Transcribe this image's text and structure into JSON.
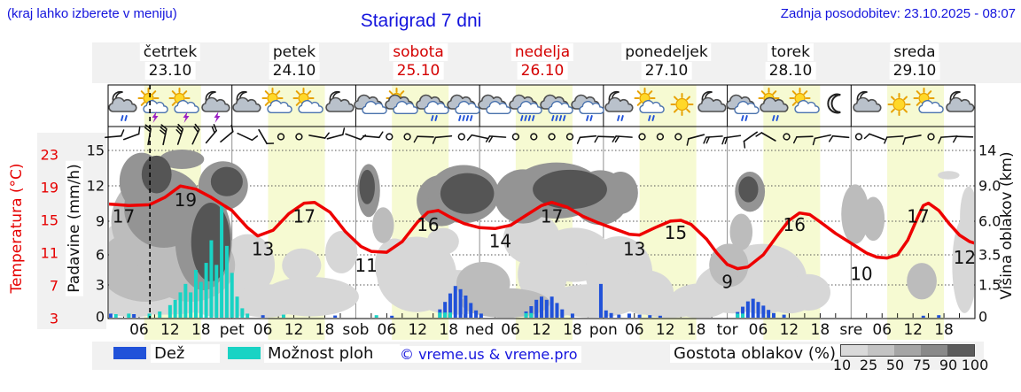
{
  "header": {
    "hint": "(kraj lahko izberete v meniju)",
    "title": "Starigrad 7 dni",
    "updated": "Zadnja posodobitev: 23.10.2025 - 08:07"
  },
  "days": [
    {
      "name": "četrtek",
      "date": "23.10",
      "weekend": false,
      "abbr": ""
    },
    {
      "name": "petek",
      "date": "24.10",
      "weekend": false,
      "abbr": "pet"
    },
    {
      "name": "sobota",
      "date": "25.10",
      "weekend": true,
      "abbr": "sob"
    },
    {
      "name": "nedelja",
      "date": "26.10",
      "weekend": true,
      "abbr": "ned"
    },
    {
      "name": "ponedeljek",
      "date": "27.10",
      "weekend": false,
      "abbr": "pon"
    },
    {
      "name": "torek",
      "date": "28.10",
      "weekend": false,
      "abbr": "tor"
    },
    {
      "name": "sreda",
      "date": "29.10",
      "weekend": false,
      "abbr": "sre"
    }
  ],
  "axes": {
    "temperature": {
      "label": "Temperatura (°C)",
      "ticks": [
        23,
        19,
        15,
        11,
        7,
        3
      ]
    },
    "precipitation": {
      "label": "Padavine (mm/h)",
      "ticks": [
        "15",
        "12",
        "9",
        "6",
        "3",
        "0"
      ]
    },
    "cloud_height": {
      "label": "Višina oblakov (km)",
      "ticks": [
        "14",
        "9.0",
        "6.0",
        "3.5",
        "1.5",
        "0"
      ]
    },
    "time": {
      "hour_labels": [
        "06",
        "12",
        "18"
      ]
    }
  },
  "legend": {
    "rain_label": "Dež",
    "shower_label": "Možnost ploh",
    "copyright": "© vreme.us & vreme.pro",
    "cloud_density_label": "Gostota oblakov (%)",
    "density_ticks": [
      "10",
      "25",
      "50",
      "75",
      "90",
      "100"
    ]
  },
  "colors": {
    "blue_text": "#1414dd",
    "red_text": "#e60000",
    "weekend_red": "#d40000",
    "temperature": "#ee0000",
    "rain": "#2152d9",
    "shower": "#19d3c4",
    "daylight": "#f6fad2",
    "density_shades": [
      "#d9d9d9",
      "#c3c3c3",
      "#a5a5a5",
      "#898989",
      "#5c5c5c"
    ],
    "cloud_shades": {
      "25": "#d7d7d7",
      "50": "#bcbcbc",
      "75": "#949494",
      "95": "#555555"
    }
  },
  "chart_data": {
    "type": "meteogram",
    "hours_span": 168,
    "current_time_hour": 8.1,
    "daylight_hours": [
      7,
      18
    ],
    "temperature_unit": "°C",
    "precip_unit": "mm/h",
    "cloud_height_unit": "km",
    "temperature_series": [
      [
        0,
        17
      ],
      [
        4,
        16.8
      ],
      [
        8,
        16.9
      ],
      [
        11,
        17.8
      ],
      [
        14,
        19.2
      ],
      [
        17,
        18.8
      ],
      [
        20,
        17.8
      ],
      [
        24,
        16.2
      ],
      [
        27,
        14.1
      ],
      [
        29,
        13.1
      ],
      [
        32,
        13.8
      ],
      [
        35,
        15.8
      ],
      [
        38,
        17.1
      ],
      [
        40,
        17.2
      ],
      [
        43,
        16
      ],
      [
        46,
        13.6
      ],
      [
        49,
        11.8
      ],
      [
        51,
        11.2
      ],
      [
        54,
        11.1
      ],
      [
        57,
        12.4
      ],
      [
        60,
        14.8
      ],
      [
        62,
        16
      ],
      [
        64,
        16.2
      ],
      [
        66,
        15.5
      ],
      [
        69,
        14.6
      ],
      [
        72,
        14.1
      ],
      [
        75,
        14
      ],
      [
        78,
        14.4
      ],
      [
        81,
        15.6
      ],
      [
        84,
        16.8
      ],
      [
        86,
        17.2
      ],
      [
        89,
        16.6
      ],
      [
        92,
        15.5
      ],
      [
        95,
        14.7
      ],
      [
        98,
        14
      ],
      [
        101,
        13.3
      ],
      [
        103,
        13.2
      ],
      [
        106,
        14.1
      ],
      [
        109,
        14.9
      ],
      [
        111,
        15
      ],
      [
        113,
        14.5
      ],
      [
        116,
        12.7
      ],
      [
        118,
        11
      ],
      [
        120,
        9.6
      ],
      [
        122,
        9.1
      ],
      [
        124,
        9.3
      ],
      [
        127,
        10.8
      ],
      [
        130,
        13.4
      ],
      [
        132,
        15
      ],
      [
        134,
        15.9
      ],
      [
        136,
        15.7
      ],
      [
        138,
        14.8
      ],
      [
        141,
        13.4
      ],
      [
        144,
        12.2
      ],
      [
        147,
        11
      ],
      [
        149,
        10.5
      ],
      [
        151,
        10.4
      ],
      [
        153,
        10.8
      ],
      [
        155,
        12.6
      ],
      [
        157,
        15.5
      ],
      [
        158,
        16.8
      ],
      [
        159,
        17.1
      ],
      [
        161,
        16.2
      ],
      [
        163,
        14.6
      ],
      [
        165,
        13.2
      ],
      [
        167,
        12.4
      ],
      [
        168,
        12.2
      ]
    ],
    "temperature_labels": [
      [
        3,
        17
      ],
      [
        15,
        19
      ],
      [
        30,
        13
      ],
      [
        38,
        17
      ],
      [
        50,
        11
      ],
      [
        62,
        16
      ],
      [
        76,
        14
      ],
      [
        86,
        17
      ],
      [
        102,
        13
      ],
      [
        110,
        15
      ],
      [
        120,
        9
      ],
      [
        133,
        16
      ],
      [
        146,
        10
      ],
      [
        157,
        17
      ],
      [
        166,
        12
      ]
    ],
    "rain_mm": [
      [
        0.5,
        0.3
      ],
      [
        5,
        0.25
      ],
      [
        30,
        0.15
      ],
      [
        44,
        0.12
      ],
      [
        55,
        0.1
      ],
      [
        64.3,
        0.7
      ],
      [
        65.3,
        1.4
      ],
      [
        66.3,
        2.2
      ],
      [
        67.3,
        2.9
      ],
      [
        68.3,
        2.6
      ],
      [
        69.3,
        2.0
      ],
      [
        70.3,
        1.3
      ],
      [
        71.3,
        0.6
      ],
      [
        72.3,
        0.3
      ],
      [
        81,
        0.5
      ],
      [
        82,
        1.0
      ],
      [
        83,
        1.6
      ],
      [
        84,
        1.9
      ],
      [
        85,
        1.6
      ],
      [
        86,
        1.9
      ],
      [
        87,
        1.3
      ],
      [
        88,
        0.7
      ],
      [
        90,
        0.3
      ],
      [
        95.5,
        3.1
      ],
      [
        96.5,
        0.6
      ],
      [
        97.5,
        0.35
      ],
      [
        99,
        0.2
      ],
      [
        101,
        0.3
      ],
      [
        103,
        0.2
      ],
      [
        105,
        0.15
      ],
      [
        107,
        0.1
      ],
      [
        122,
        0.45
      ],
      [
        123,
        0.95
      ],
      [
        124,
        1.45
      ],
      [
        125,
        1.7
      ],
      [
        126,
        1.4
      ],
      [
        127,
        1.05
      ],
      [
        128,
        0.65
      ],
      [
        129,
        0.35
      ],
      [
        131,
        0.2
      ],
      [
        158,
        0.1
      ],
      [
        161,
        0.15
      ]
    ],
    "shower_mm": [
      [
        1.5,
        0.25
      ],
      [
        4,
        0.3
      ],
      [
        8,
        0.3
      ],
      [
        10,
        0.5
      ],
      [
        12,
        1.1
      ],
      [
        13,
        1.6
      ],
      [
        14,
        2.3
      ],
      [
        15,
        3.1
      ],
      [
        16,
        2.3
      ],
      [
        17,
        4.5
      ],
      [
        18,
        3.3
      ],
      [
        19,
        5.2
      ],
      [
        20,
        7.3
      ],
      [
        21,
        5.0
      ],
      [
        22,
        10.5
      ],
      [
        23,
        6.8
      ],
      [
        24,
        4.2
      ],
      [
        25,
        1.9
      ],
      [
        26,
        0.8
      ],
      [
        27,
        0.3
      ],
      [
        34,
        0.2
      ],
      [
        52,
        0.15
      ],
      [
        64.3,
        0.4
      ],
      [
        65.3,
        0.4
      ],
      [
        66.3,
        0.4
      ],
      [
        81,
        0.35
      ],
      [
        82,
        0.35
      ],
      [
        122,
        0.3
      ],
      [
        123,
        0.3
      ]
    ],
    "clouds": [
      [
        1,
        2.5,
        2.4,
        3,
        25
      ],
      [
        4.8,
        0.55,
        6,
        0.6,
        25
      ],
      [
        10.8,
        1.15,
        13.7,
        1.2,
        25
      ],
      [
        22.8,
        0.75,
        7.7,
        0.85,
        25
      ],
      [
        7.4,
        2.8,
        9.4,
        2.3,
        50
      ],
      [
        16,
        2.8,
        8.6,
        2.3,
        50
      ],
      [
        10,
        6,
        9.4,
        4,
        50
      ],
      [
        10.8,
        7.1,
        7.7,
        3.5,
        75
      ],
      [
        18.5,
        4.6,
        5.5,
        3.6,
        75
      ],
      [
        6.5,
        9.6,
        4.3,
        3.2,
        75
      ],
      [
        9.4,
        10.6,
        2.9,
        2.4,
        95
      ],
      [
        19.9,
        4.45,
        3.8,
        2.9,
        95
      ],
      [
        22.3,
        9,
        4.8,
        2.6,
        75
      ],
      [
        23,
        9.6,
        3.1,
        1.7,
        95
      ],
      [
        14.3,
        12.75,
        4.3,
        1.5,
        75
      ],
      [
        27.1,
        2.8,
        5.2,
        2,
        25
      ],
      [
        30.6,
        0.75,
        6.9,
        0.85,
        25
      ],
      [
        39.2,
        0.95,
        9.4,
        1.05,
        25
      ],
      [
        37.5,
        2.8,
        3.8,
        1.15,
        25
      ],
      [
        45.2,
        3.7,
        3.1,
        1.5,
        25
      ],
      [
        50.5,
        8.6,
        2.2,
        2.7,
        75
      ],
      [
        50.2,
        8.9,
        1.5,
        1.8,
        95
      ],
      [
        53.3,
        5.7,
        2.1,
        1.4,
        50
      ],
      [
        55.5,
        2.8,
        3.8,
        1.75,
        25
      ],
      [
        59.8,
        2.2,
        7.7,
        2.3,
        25
      ],
      [
        67.5,
        1.15,
        8.6,
        1.2,
        25
      ],
      [
        77,
        0.65,
        8.6,
        0.75,
        50
      ],
      [
        72.7,
        1.6,
        5.2,
        1.2,
        50
      ],
      [
        64.6,
        7.75,
        4.8,
        2.35,
        75
      ],
      [
        68.9,
        8.3,
        6.9,
        2.85,
        75
      ],
      [
        69.6,
        8.35,
        5.2,
        2,
        95
      ],
      [
        64.9,
        4.5,
        3.1,
        1,
        25
      ],
      [
        83.8,
        0.65,
        9.4,
        0.72,
        25
      ],
      [
        84.2,
        2.2,
        4.8,
        1.75,
        25
      ],
      [
        80.4,
        8.1,
        5.5,
        2.6,
        75
      ],
      [
        86.9,
        8.6,
        8.9,
        2.85,
        75
      ],
      [
        89.5,
        8.7,
        7.2,
        2,
        95
      ],
      [
        95.4,
        8,
        5.5,
        2.6,
        75
      ],
      [
        99.3,
        8.4,
        3.4,
        2.1,
        75
      ],
      [
        82.1,
        4.7,
        5.5,
        1.9,
        25
      ],
      [
        90.4,
        3.5,
        7.2,
        1.9,
        25
      ],
      [
        99,
        2.3,
        6.5,
        2.2,
        25
      ],
      [
        93.8,
        0.75,
        9.4,
        0.85,
        25
      ],
      [
        104.1,
        1.15,
        5.5,
        1.2,
        25
      ],
      [
        108.8,
        0.55,
        6.9,
        0.65,
        25
      ],
      [
        114.8,
        0.75,
        6,
        0.95,
        25
      ],
      [
        121,
        1.35,
        7.2,
        1.4,
        25
      ],
      [
        126.8,
        1.9,
        8.6,
        2.2,
        25
      ],
      [
        132,
        1.15,
        5.5,
        1.1,
        25
      ],
      [
        124.4,
        8.5,
        2.9,
        2,
        75
      ],
      [
        124.1,
        8.7,
        1.9,
        1.3,
        95
      ],
      [
        122.7,
        5.2,
        2.2,
        1.4,
        50
      ],
      [
        120.3,
        2.8,
        3.8,
        1.45,
        50
      ],
      [
        135.7,
        1.15,
        4.3,
        0.95,
        25
      ],
      [
        144.8,
        6.6,
        2.7,
        2.4,
        50
      ],
      [
        148.3,
        6.2,
        2.2,
        1.75,
        50
      ],
      [
        157.7,
        1.75,
        2.9,
        1.05,
        50
      ],
      [
        166,
        2.8,
        2.4,
        3.2,
        25
      ],
      [
        166.8,
        6.4,
        1.7,
        2.4,
        25
      ],
      [
        162.9,
        10.5,
        2.1,
        0.6,
        25
      ]
    ],
    "icons": [
      "mgr",
      "swb",
      "swb",
      "mgb",
      "mg",
      "sw",
      "sw",
      "mg",
      "gw",
      "sgw",
      "gwr",
      "gwR",
      "gw",
      "gwR",
      "gwR",
      "gwr",
      "mgr",
      "swr",
      "s",
      "mg",
      "gwr",
      "sgr",
      "sw",
      "m",
      "mg",
      "s",
      "sw",
      "mg"
    ],
    "wind": [
      [
        1,
        "b",
        -5,
        1
      ],
      [
        4.5,
        "b",
        -20,
        1
      ],
      [
        8,
        "b",
        -80,
        2
      ],
      [
        11,
        "b",
        -78,
        3
      ],
      [
        14,
        "b",
        -72,
        3
      ],
      [
        17,
        "b",
        -65,
        2
      ],
      [
        20,
        "b",
        -50,
        2
      ],
      [
        23,
        "b",
        -40,
        1
      ],
      [
        26.5,
        "b",
        25,
        1
      ],
      [
        30,
        "b",
        60,
        1
      ],
      [
        33.5,
        "c",
        0,
        0
      ],
      [
        37,
        "c",
        0,
        0
      ],
      [
        40.5,
        "b",
        10,
        1
      ],
      [
        44,
        "b",
        -15,
        1
      ],
      [
        47.5,
        "b",
        20,
        1
      ],
      [
        51,
        "b",
        5,
        1
      ],
      [
        54.5,
        "c",
        0,
        0
      ],
      [
        58,
        "c",
        0,
        0
      ],
      [
        61.5,
        "b",
        182,
        1
      ],
      [
        65,
        "b",
        175,
        1
      ],
      [
        68.5,
        "c",
        0,
        0
      ],
      [
        72,
        "b",
        192,
        1
      ],
      [
        75.5,
        "b",
        184,
        2
      ],
      [
        79,
        "c",
        0,
        0
      ],
      [
        82.5,
        "c",
        0,
        0
      ],
      [
        86,
        "c",
        0,
        0
      ],
      [
        89.5,
        "c",
        0,
        0
      ],
      [
        93,
        "b",
        175,
        1
      ],
      [
        96.5,
        "b",
        182,
        1
      ],
      [
        100,
        "b",
        184,
        2
      ],
      [
        103.5,
        "c",
        0,
        0
      ],
      [
        107,
        "c",
        0,
        0
      ],
      [
        110.5,
        "c",
        0,
        0
      ],
      [
        114,
        "b",
        165,
        1
      ],
      [
        117.5,
        "b",
        176,
        2
      ],
      [
        121,
        "b",
        172,
        2
      ],
      [
        124.5,
        "b",
        145,
        1
      ],
      [
        128,
        "b",
        210,
        1
      ],
      [
        131.5,
        "c",
        0,
        0
      ],
      [
        135,
        "b",
        178,
        1
      ],
      [
        138.5,
        "b",
        168,
        1
      ],
      [
        142,
        "b",
        185,
        1
      ],
      [
        145.5,
        "c",
        0,
        0
      ],
      [
        149,
        "b",
        200,
        1
      ],
      [
        152.5,
        "b",
        176,
        1
      ],
      [
        156,
        "b",
        170,
        1
      ],
      [
        159.5,
        "c",
        0,
        0
      ],
      [
        163,
        "b",
        176,
        1
      ],
      [
        166,
        "b",
        182,
        1
      ]
    ]
  }
}
